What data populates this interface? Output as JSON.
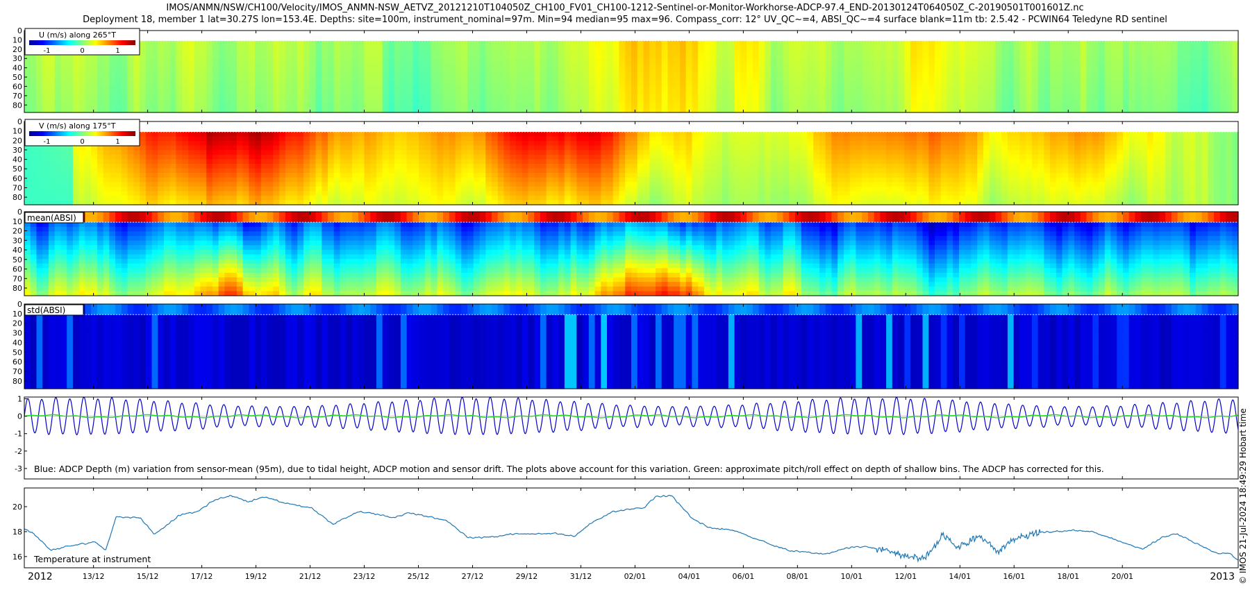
{
  "header": {
    "title_line1": "IMOS/ANMN/NSW/CH100/Velocity/IMOS_ANMN-NSW_AETVZ_20121210T104050Z_CH100_FV01_CH100-1212-Sentinel-or-Monitor-Workhorse-ADCP-97.4_END-20130124T064050Z_C-20190501T001601Z.nc",
    "title_line2": "Deployment 18, member 1 lat=30.27S lon=153.4E. Depths: site=100m, instrument_nominal=97m. Min=94 median=95 max=96. Compass_corr: 12° UV_QC~=4, ABSI_QC~=4 surface blank=11m tb: 2.5.42 - PCWIN64 Teledyne RD sentinel"
  },
  "side_label": "© IMOS 21-Jul-2024 18:49:29 Hobart time",
  "colors": {
    "axis": "#000000",
    "depth_line": "#0000cc",
    "pitch_roll_line": "#22dd22",
    "temperature_line": "#1f77b4",
    "jet": [
      "#00008f",
      "#0000ff",
      "#0080ff",
      "#00ffff",
      "#80ff80",
      "#ffff00",
      "#ff8000",
      "#ff0000",
      "#800000"
    ]
  },
  "chart_data": [
    {
      "type": "heatmap",
      "label": "U (m/s) along 265°T",
      "colorbar_ticks": [
        "-1",
        "0",
        "1"
      ],
      "colorbar_range": [
        -1.5,
        1.5
      ],
      "ylim": [
        88,
        0
      ],
      "yticks": [
        "0",
        "10",
        "20",
        "30",
        "40",
        "50",
        "60",
        "70",
        "80"
      ],
      "ytick_values": [
        0,
        10,
        20,
        30,
        40,
        50,
        60,
        70,
        80
      ],
      "surface_blank_depth": 11,
      "value_summary": "mostly between -0.3 and 0.5, with brief yellow patches up to about 0.8 around early January"
    },
    {
      "type": "heatmap",
      "label": "V (m/s) along 175°T",
      "colorbar_ticks": [
        "-1",
        "0",
        "1"
      ],
      "colorbar_range": [
        -1.5,
        1.5
      ],
      "ylim": [
        88,
        0
      ],
      "yticks": [
        "0",
        "10",
        "20",
        "30",
        "40",
        "50",
        "60",
        "70",
        "80"
      ],
      "ytick_values": [
        0,
        10,
        20,
        30,
        40,
        50,
        60,
        70,
        80
      ],
      "surface_blank_depth": 11,
      "value_summary": "strong southward flow (0.8 to 1.4) in upper layers mid-December and late December, weaker late in record"
    },
    {
      "type": "heatmap",
      "label": "mean(ABSI)",
      "ylim": [
        88,
        0
      ],
      "yticks": [
        "0",
        "10",
        "20",
        "30",
        "40",
        "50",
        "60",
        "70",
        "80"
      ],
      "ytick_values": [
        0,
        10,
        20,
        30,
        40,
        50,
        60,
        70,
        80
      ]
    },
    {
      "type": "heatmap",
      "label": "std(ABSI)",
      "ylim": [
        88,
        0
      ],
      "yticks": [
        "0",
        "10",
        "20",
        "30",
        "40",
        "50",
        "60",
        "70",
        "80"
      ],
      "ytick_values": [
        0,
        10,
        20,
        30,
        40,
        50,
        60,
        70,
        80
      ]
    },
    {
      "type": "line",
      "caption": "Blue: ADCP Depth (m) variation from sensor-mean (95m), due to tidal height, ADCP motion and sensor drift. The plots above account for this variation. Green: approximate pitch/roll effect on depth of shallow bins. The ADCP has corrected for this.",
      "yticks": [
        "1",
        "0",
        "-1",
        "-2",
        "-3"
      ],
      "ytick_values": [
        1,
        0,
        -1,
        -2,
        -3
      ],
      "ylim": [
        1.1,
        -3.6
      ],
      "series": [
        {
          "role": "depth variation",
          "kind": "semi-diurnal tide",
          "period_hours": 12.42,
          "amplitude_range_m": [
            0.55,
            1.05
          ]
        },
        {
          "role": "pitch/roll effect",
          "kind": "near zero",
          "amplitude_range_m": [
            -0.1,
            0.1
          ]
        }
      ]
    },
    {
      "type": "line",
      "annotation": "Temperature at instrument",
      "yticks": [
        "16",
        "18",
        "20"
      ],
      "ytick_values": [
        16,
        18,
        20
      ],
      "ylim": [
        15.1,
        21.5
      ],
      "x_days_from_start": [
        0,
        0.3,
        1,
        1.6,
        2.6,
        3.0,
        3.4,
        4.3,
        4.8,
        5.2,
        5.7,
        6.4,
        7,
        7.6,
        8.3,
        8.8,
        9.6,
        10.6,
        11.4,
        12.3,
        13,
        13.6,
        14.2,
        15.6,
        16.4,
        17.4,
        18,
        18.6,
        19.6,
        20.3,
        20.9,
        21.7,
        22.4,
        22.9,
        23.3,
        23.9,
        24.7,
        25.3,
        26.2,
        27.3,
        28.2,
        29,
        29.6,
        30.4,
        31,
        31.8,
        32.6,
        33.3,
        33.9,
        34.5,
        35.2,
        36,
        36.5,
        37.1,
        37.5,
        38.1,
        38.7,
        39.4,
        40.5,
        41.3,
        42.1,
        42.6,
        43.5,
        44.1,
        44.5,
        44.8
      ],
      "temperature_C": [
        18.2,
        17.9,
        16.5,
        16.8,
        17.2,
        16.5,
        19.2,
        19.1,
        17.8,
        18.4,
        19.3,
        19.6,
        20.5,
        20.9,
        20.4,
        20.8,
        20.3,
        19.9,
        18.6,
        19.6,
        19.4,
        19.1,
        19.5,
        18.9,
        17.5,
        17.6,
        17.8,
        17.8,
        17.9,
        17.6,
        18.6,
        19.6,
        19.8,
        19.9,
        20.8,
        20.9,
        19.0,
        18.3,
        18.1,
        17.2,
        16.5,
        16.3,
        16.2,
        16.7,
        16.8,
        16.5,
        16.0,
        15.9,
        17.7,
        16.7,
        17.6,
        16.4,
        17.3,
        17.7,
        17.9,
        18.0,
        18.1,
        18.0,
        17.2,
        16.6,
        17.6,
        17.8,
        16.8,
        16.2,
        16.3,
        15.7
      ]
    }
  ],
  "x_axis": {
    "start_label": "2012",
    "end_label": "2013",
    "range_dates": [
      "2012-12-10T10:40",
      "2013-01-24T06:40"
    ],
    "tick_labels": [
      "13/12",
      "15/12",
      "17/12",
      "19/12",
      "21/12",
      "23/12",
      "25/12",
      "27/12",
      "29/12",
      "31/12",
      "02/01",
      "04/01",
      "06/01",
      "08/01",
      "10/01",
      "12/01",
      "14/01",
      "16/01",
      "18/01",
      "20/01"
    ],
    "tick_dates": [
      "2012-12-13",
      "2012-12-15",
      "2012-12-17",
      "2012-12-19",
      "2012-12-21",
      "2012-12-23",
      "2012-12-25",
      "2012-12-27",
      "2012-12-29",
      "2012-12-31",
      "2013-01-02",
      "2013-01-04",
      "2013-01-06",
      "2013-01-08",
      "2013-01-10",
      "2013-01-12",
      "2013-01-14",
      "2013-01-16",
      "2013-01-18",
      "2013-01-20"
    ]
  }
}
